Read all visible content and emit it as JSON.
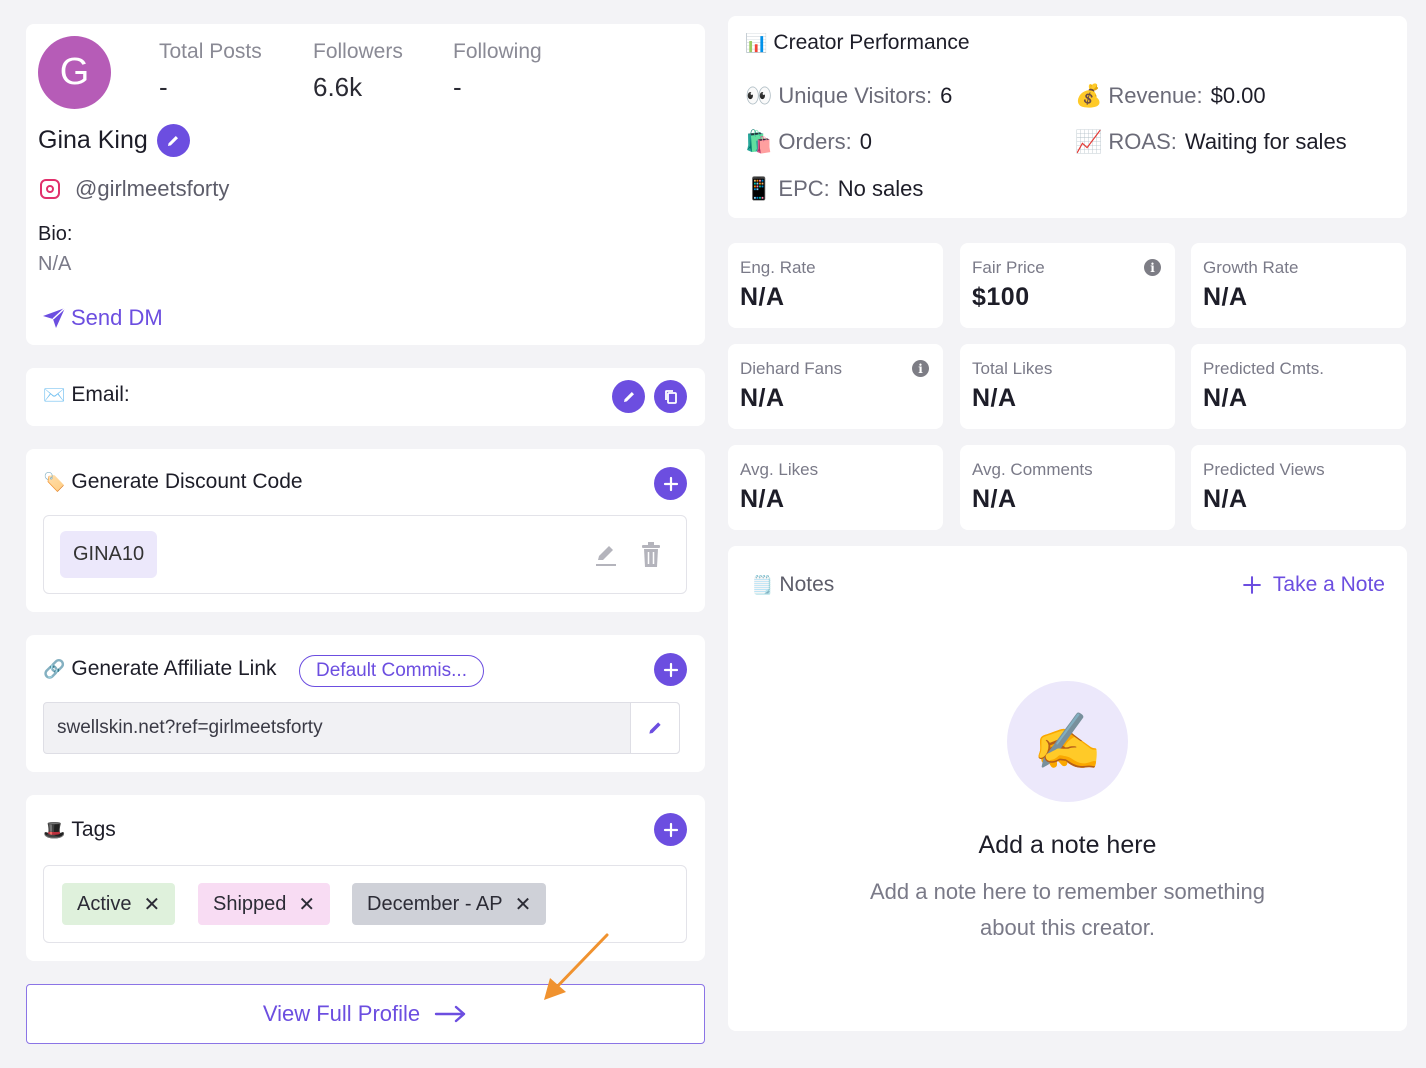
{
  "profile": {
    "avatar_initial": "G",
    "stats": [
      {
        "label": "Total Posts",
        "value": "-"
      },
      {
        "label": "Followers",
        "value": "6.6k"
      },
      {
        "label": "Following",
        "value": "-"
      }
    ],
    "name": "Gina King",
    "handle": "@girlmeetsforty",
    "bio_label": "Bio:",
    "bio_value": "N/A",
    "send_dm_label": "Send DM"
  },
  "email": {
    "label": "Email:"
  },
  "discount": {
    "title": "Generate Discount Code",
    "code": "GINA10"
  },
  "affiliate": {
    "title": "Generate Affiliate Link",
    "commission_label": "Default Commis...",
    "link": "swellskin.net?ref=girlmeetsforty"
  },
  "tags": {
    "title": "Tags",
    "items": [
      {
        "label": "Active",
        "color": "#dff1dc"
      },
      {
        "label": "Shipped",
        "color": "#f8dcf3"
      },
      {
        "label": "December - AP",
        "color": "#cfd1d8"
      }
    ]
  },
  "view_full_profile_label": "View Full Profile",
  "performance": {
    "title": "Creator Performance",
    "items": [
      {
        "emoji": "👀",
        "label": "Unique Visitors:",
        "value": "6"
      },
      {
        "emoji": "💰",
        "label": "Revenue:",
        "value": "$0.00"
      },
      {
        "emoji": "🛍️",
        "label": "Orders:",
        "value": "0"
      },
      {
        "emoji": "📈",
        "label": "ROAS:",
        "value": "Waiting for sales"
      },
      {
        "emoji": "📱",
        "label": "EPC:",
        "value": "No sales"
      }
    ]
  },
  "metrics": [
    {
      "label": "Eng. Rate",
      "value": "N/A"
    },
    {
      "label": "Fair Price",
      "value": "$100"
    },
    {
      "label": "Growth Rate",
      "value": "N/A"
    },
    {
      "label": "Diehard Fans",
      "value": "N/A"
    },
    {
      "label": "Total Likes",
      "value": "N/A"
    },
    {
      "label": "Predicted Cmts.",
      "value": "N/A"
    },
    {
      "label": "Avg. Likes",
      "value": "N/A"
    },
    {
      "label": "Avg. Comments",
      "value": "N/A"
    },
    {
      "label": "Predicted Views",
      "value": "N/A"
    }
  ],
  "notes": {
    "title": "Notes",
    "take_note_label": "Take a Note",
    "empty_title": "Add a note here",
    "empty_line1": "Add a note here to remember something",
    "empty_line2": "about this creator."
  },
  "colors": {
    "accent": "#6c4ee0",
    "avatar": "#b65cb7",
    "annotation_arrow": "#f0922f"
  }
}
